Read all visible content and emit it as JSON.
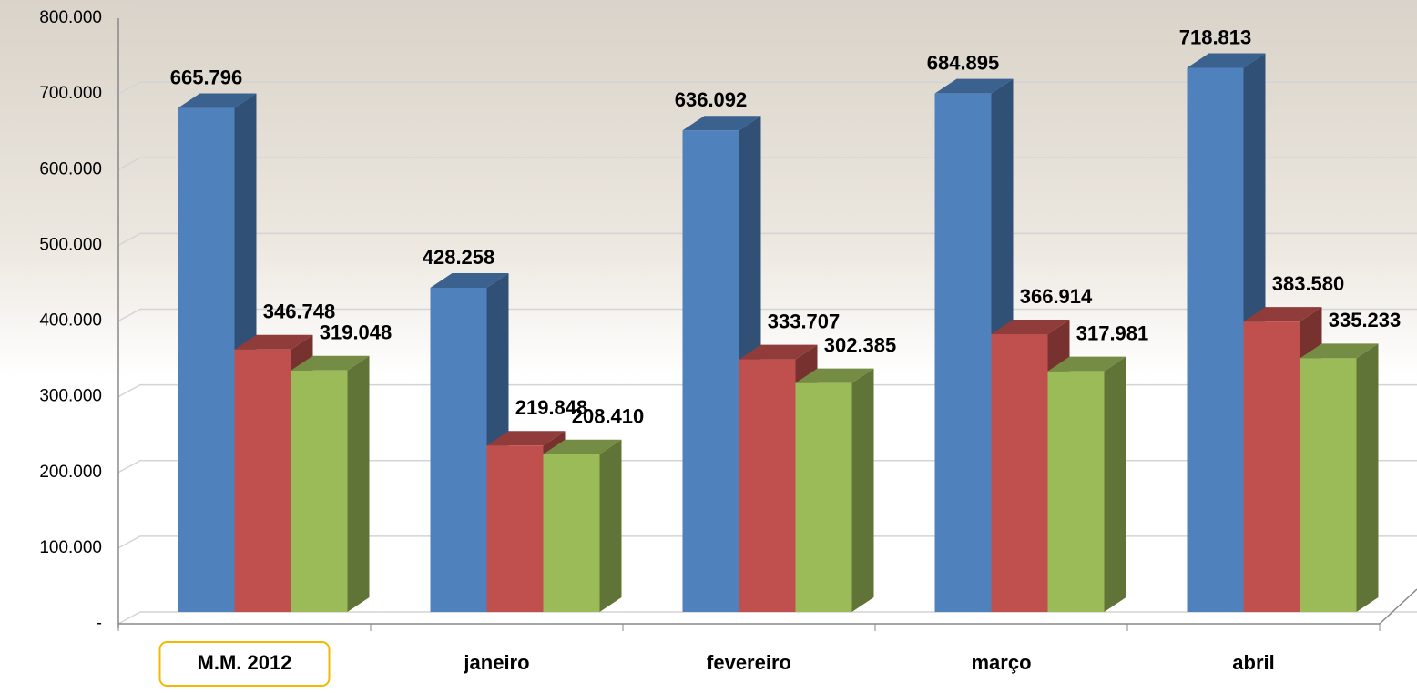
{
  "chart_data": {
    "type": "bar3d",
    "categories": [
      "M.M. 2012",
      "janeiro",
      "fevereiro",
      "março",
      "abril"
    ],
    "series": [
      {
        "color": "#4f81bd",
        "values": [
          665796,
          428258,
          636092,
          684895,
          718813
        ],
        "value_labels": [
          "665.796",
          "428.258",
          "636.092",
          "684.895",
          "718.813"
        ]
      },
      {
        "color": "#c0504d",
        "values": [
          346748,
          219848,
          333707,
          366914,
          383580
        ],
        "value_labels": [
          "346.748",
          "219.848",
          "333.707",
          "366.914",
          "383.580"
        ]
      },
      {
        "color": "#9bbb59",
        "values": [
          319048,
          208410,
          302385,
          317981,
          335233
        ],
        "value_labels": [
          "319.048",
          "208.410",
          "302.385",
          "317.981",
          "335.233"
        ]
      }
    ],
    "ylim": [
      0,
      800000
    ],
    "yticks": [
      {
        "value": 0,
        "label": "-"
      },
      {
        "value": 100000,
        "label": "100.000"
      },
      {
        "value": 200000,
        "label": "200.000"
      },
      {
        "value": 300000,
        "label": "300.000"
      },
      {
        "value": 400000,
        "label": "400.000"
      },
      {
        "value": 500000,
        "label": "500.000"
      },
      {
        "value": 600000,
        "label": "600.000"
      },
      {
        "value": 700000,
        "label": "700.000"
      },
      {
        "value": 800000,
        "label": "800.000"
      }
    ],
    "grid": true
  }
}
